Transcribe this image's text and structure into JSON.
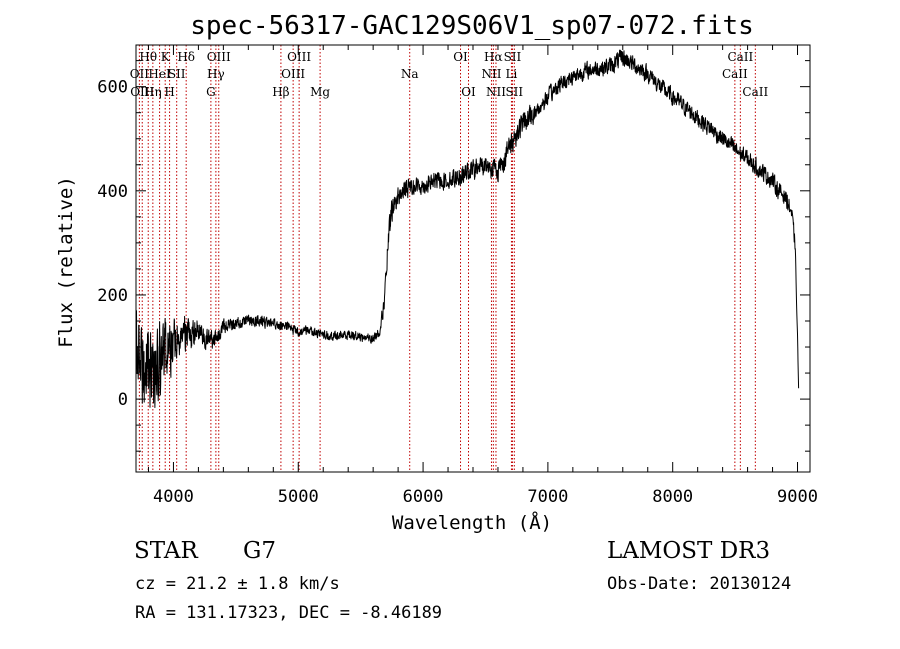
{
  "chart_data": {
    "type": "line",
    "title": "spec-56317-GAC129S06V1_sp07-072.fits",
    "xlabel": "Wavelength (Å)",
    "ylabel": "Flux (relative)",
    "xlim": [
      3700,
      9100
    ],
    "ylim": [
      -140,
      680
    ],
    "x_ticks": [
      4000,
      5000,
      6000,
      7000,
      8000,
      9000
    ],
    "x_tick_labels": [
      "4000",
      "5000",
      "6000",
      "7000",
      "8000",
      "9000"
    ],
    "y_ticks": [
      0,
      200,
      400,
      600
    ],
    "y_tick_labels": [
      "0",
      "200",
      "400",
      "600"
    ],
    "series": [
      {
        "name": "flux",
        "x": [
          3700,
          3750,
          3800,
          3850,
          3900,
          3950,
          4000,
          4050,
          4100,
          4150,
          4200,
          4250,
          4300,
          4350,
          4400,
          4500,
          4600,
          4700,
          4800,
          4900,
          5000,
          5100,
          5200,
          5300,
          5400,
          5500,
          5600,
          5650,
          5680,
          5700,
          5720,
          5750,
          5800,
          5900,
          6000,
          6100,
          6200,
          6300,
          6400,
          6500,
          6560,
          6600,
          6650,
          6700,
          6750,
          6800,
          6900,
          7000,
          7100,
          7200,
          7300,
          7400,
          7500,
          7600,
          7650,
          7700,
          7800,
          7900,
          8000,
          8100,
          8200,
          8300,
          8400,
          8500,
          8600,
          8700,
          8800,
          8850,
          8900,
          8950,
          8980,
          9000,
          9010
        ],
        "y": [
          120,
          40,
          60,
          80,
          90,
          100,
          110,
          120,
          130,
          120,
          140,
          120,
          110,
          120,
          140,
          145,
          150,
          150,
          145,
          140,
          130,
          130,
          125,
          120,
          125,
          120,
          115,
          130,
          170,
          220,
          300,
          360,
          390,
          410,
          410,
          420,
          420,
          430,
          440,
          450,
          445,
          440,
          460,
          490,
          510,
          530,
          550,
          580,
          605,
          620,
          630,
          635,
          640,
          655,
          650,
          640,
          625,
          600,
          580,
          560,
          540,
          520,
          500,
          480,
          460,
          440,
          420,
          400,
          390,
          360,
          300,
          120,
          5
        ],
        "noise_amplitude": [
          90,
          110,
          140,
          120,
          100,
          80,
          70,
          55,
          45,
          40,
          35,
          30,
          25,
          22,
          20,
          16,
          15,
          15,
          14,
          14,
          14,
          13,
          13,
          12,
          12,
          12,
          12,
          14,
          20,
          30,
          35,
          35,
          25,
          22,
          22,
          22,
          22,
          24,
          26,
          28,
          28,
          28,
          30,
          30,
          30,
          30,
          24,
          22,
          22,
          22,
          22,
          22,
          22,
          25,
          22,
          22,
          22,
          22,
          22,
          22,
          22,
          22,
          22,
          22,
          22,
          22,
          22,
          22,
          22,
          22,
          22,
          6,
          0
        ]
      }
    ],
    "line_color": "#000000",
    "reference_line_color": "#c00000",
    "reference_lines": [
      {
        "wavelength": 3727,
        "label": "OII",
        "row": 2
      },
      {
        "wavelength": 3750,
        "label": "OIII",
        "row": 3
      },
      {
        "wavelength": 3798,
        "label": "Hθ",
        "row": 1
      },
      {
        "wavelength": 3835,
        "label": "Hη",
        "row": 3
      },
      {
        "wavelength": 3889,
        "label": "HeI",
        "row": 2
      },
      {
        "wavelength": 3934,
        "label": "K",
        "row": 1
      },
      {
        "wavelength": 3969,
        "label": "H",
        "row": 3
      },
      {
        "wavelength": 4026,
        "label": "SII",
        "row": 2
      },
      {
        "wavelength": 4102,
        "label": "Hδ",
        "row": 1
      },
      {
        "wavelength": 4300,
        "label": "G",
        "row": 3
      },
      {
        "wavelength": 4340,
        "label": "Hγ",
        "row": 2
      },
      {
        "wavelength": 4363,
        "label": "OIII",
        "row": 1
      },
      {
        "wavelength": 4861,
        "label": "Hβ",
        "row": 3
      },
      {
        "wavelength": 4959,
        "label": "OIII",
        "row": 2
      },
      {
        "wavelength": 5007,
        "label": "OIII",
        "row": 1
      },
      {
        "wavelength": 5175,
        "label": "Mg",
        "row": 3
      },
      {
        "wavelength": 5893,
        "label": "Na",
        "row": 2
      },
      {
        "wavelength": 6300,
        "label": "OI",
        "row": 1
      },
      {
        "wavelength": 6364,
        "label": "OI",
        "row": 3
      },
      {
        "wavelength": 6548,
        "label": "NII",
        "row": 2
      },
      {
        "wavelength": 6563,
        "label": "Hα",
        "row": 1
      },
      {
        "wavelength": 6584,
        "label": "NII",
        "row": 3
      },
      {
        "wavelength": 6708,
        "label": "Li",
        "row": 2
      },
      {
        "wavelength": 6716,
        "label": "SII",
        "row": 1
      },
      {
        "wavelength": 6731,
        "label": "SII",
        "row": 3
      },
      {
        "wavelength": 8498,
        "label": "CaII",
        "row": 2
      },
      {
        "wavelength": 8542,
        "label": "CaII",
        "row": 1
      },
      {
        "wavelength": 8662,
        "label": "CaII",
        "row": 3
      }
    ]
  },
  "info": {
    "object_class": "STAR",
    "subclass": "G7",
    "survey": "LAMOST DR3",
    "redshift": "cz = 21.2 ± 1.8 km/s",
    "obs_date": "Obs-Date: 20130124",
    "coords": "RA = 131.17323, DEC =  -8.46189"
  }
}
